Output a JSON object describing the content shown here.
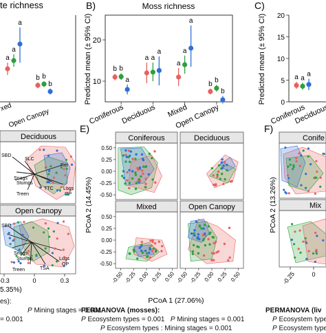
{
  "chart_data": [
    {
      "type": "scatter",
      "panel": "A",
      "title_fragment": "te richness",
      "categories": [
        "xed",
        "Open Canopy"
      ],
      "colors": [
        "#e8605f",
        "#2f9e3c",
        "#2f6fd6"
      ],
      "points": [
        {
          "cat": "xed",
          "idx": 0,
          "mean": 13.0,
          "lo": 11.5,
          "hi": 14.5,
          "label": "a"
        },
        {
          "cat": "xed",
          "idx": 1,
          "mean": 15.0,
          "lo": 13.5,
          "hi": 16.5,
          "label": "a"
        },
        {
          "cat": "xed",
          "idx": 2,
          "mean": 19.0,
          "lo": 14.5,
          "hi": 23.0,
          "label": "a"
        },
        {
          "cat": "Open Canopy",
          "idx": 0,
          "mean": 9.0,
          "lo": 8.3,
          "hi": 9.7,
          "label": "b"
        },
        {
          "cat": "Open Canopy",
          "idx": 1,
          "mean": 9.3,
          "lo": 8.6,
          "hi": 10.0,
          "label": "b"
        },
        {
          "cat": "Open Canopy",
          "idx": 2,
          "mean": 7.5,
          "lo": 6.8,
          "hi": 8.2,
          "label": "b"
        }
      ]
    },
    {
      "type": "scatter",
      "panel": "B",
      "title": "Moss richness",
      "ylabel": "Predicted mean (± 95% CI)",
      "ylim": [
        5,
        26
      ],
      "yticks": [
        10,
        20
      ],
      "categories": [
        "Coniferous",
        "Deciduous",
        "Mixed",
        "Open Canopy"
      ],
      "colors": [
        "#e8605f",
        "#2f9e3c",
        "#2f6fd6"
      ],
      "points": [
        {
          "cat": "Coniferous",
          "idx": 0,
          "mean": 11.0,
          "lo": 10.2,
          "hi": 11.8,
          "label": "b"
        },
        {
          "cat": "Coniferous",
          "idx": 1,
          "mean": 11.1,
          "lo": 10.3,
          "hi": 11.9,
          "label": "b"
        },
        {
          "cat": "Coniferous",
          "idx": 2,
          "mean": 8.0,
          "lo": 6.8,
          "hi": 9.2,
          "label": "a"
        },
        {
          "cat": "Deciduous",
          "idx": 0,
          "mean": 12.0,
          "lo": 9.5,
          "hi": 14.5,
          "label": "a"
        },
        {
          "cat": "Deciduous",
          "idx": 1,
          "mean": 12.2,
          "lo": 10.0,
          "hi": 14.5,
          "label": "a"
        },
        {
          "cat": "Deciduous",
          "idx": 2,
          "mean": 12.6,
          "lo": 9.0,
          "hi": 16.0,
          "label": "a"
        },
        {
          "cat": "Mixed",
          "idx": 0,
          "mean": 11.0,
          "lo": 8.8,
          "hi": 13.2,
          "label": "a"
        },
        {
          "cat": "Mixed",
          "idx": 1,
          "mean": 14.0,
          "lo": 11.8,
          "hi": 16.2,
          "label": "a"
        },
        {
          "cat": "Mixed",
          "idx": 2,
          "mean": 18.0,
          "lo": 13.5,
          "hi": 23.5,
          "label": "a"
        },
        {
          "cat": "Open Canopy",
          "idx": 0,
          "mean": 7.5,
          "lo": 6.8,
          "hi": 8.2,
          "label": "b"
        },
        {
          "cat": "Open Canopy",
          "idx": 1,
          "mean": 8.3,
          "lo": 7.5,
          "hi": 9.1,
          "label": "b"
        },
        {
          "cat": "Open Canopy",
          "idx": 2,
          "mean": 5.5,
          "lo": 4.6,
          "hi": 6.4,
          "label": "b"
        }
      ]
    },
    {
      "type": "scatter",
      "panel": "C",
      "ylabel": "Predicted mean (± 95% CI)",
      "ylim": [
        0,
        20
      ],
      "yticks": [
        0,
        5,
        10,
        15,
        20
      ],
      "categories": [
        "Coniferous",
        "Deciduous"
      ],
      "colors": [
        "#e8605f",
        "#2f9e3c",
        "#2f6fd6"
      ],
      "points": [
        {
          "cat": "Coniferous",
          "idx": 0,
          "mean": 3.8,
          "lo": 3.0,
          "hi": 4.6,
          "label": "a"
        },
        {
          "cat": "Coniferous",
          "idx": 1,
          "mean": 3.6,
          "lo": 2.8,
          "hi": 4.4,
          "label": "a"
        },
        {
          "cat": "Coniferous",
          "idx": 2,
          "mean": 4.0,
          "lo": 2.7,
          "hi": 5.3,
          "label": "a"
        }
      ]
    },
    {
      "type": "scatter",
      "panel": "D",
      "facets": [
        "Deciduous",
        "Open Canopy"
      ],
      "arrow_labels": [
        "SLC",
        "SBD",
        "Snags",
        "Stumps",
        "TSA",
        "Treen",
        "TTC",
        "Logs",
        "OP",
        "Ret"
      ],
      "xticks": [
        "0",
        "0.3"
      ],
      "xlabel_fragment": "5.35%)"
    },
    {
      "type": "scatter",
      "panel": "E",
      "xlabel": "PCoA 1 (27.06%)",
      "ylabel": "PCoA 2 (14.45%)",
      "xlim": [
        -0.6,
        0.6
      ],
      "ylim": [
        -0.6,
        0.6
      ],
      "xticks": [
        -0.5,
        -0.25,
        0.0,
        0.25,
        0.5
      ],
      "yticks": [
        -0.5,
        -0.25,
        0.0,
        0.25,
        0.5
      ],
      "facets": [
        "Coniferous",
        "Deciduous",
        "Mixed",
        "Open Canopy"
      ],
      "series": [
        {
          "name": "Coniferous",
          "color": "#e8605f"
        },
        {
          "name": "Deciduous",
          "color": "#2f9e3c"
        },
        {
          "name": "Mixed",
          "color": "#2f6fd6"
        }
      ]
    },
    {
      "type": "scatter",
      "panel": "F",
      "ylabel": "PCoA 2 (13.26%)",
      "facets": [
        "Conife",
        "Mix"
      ],
      "xticks": [
        -0.25,
        0
      ]
    }
  ],
  "figure": {
    "panel_labels": {
      "b": "B)",
      "c": "C)",
      "e": "E)",
      "f": "F)"
    },
    "axis_text": {
      "a_tick_lo": "-0.3",
      "a_tick_mid": "0",
      "a_tick_hi": "0.3"
    }
  },
  "permanova": {
    "left": {
      "heading": "es):",
      "line1_p": "P",
      "line1": "Mining stages = 0.001",
      "line2": "= 0.001"
    },
    "middle": {
      "heading": "PERMANOVA",
      "heading_rest": "(mosses):",
      "line1a_p": "P",
      "line1a": "Ecosystem types = 0.001",
      "line1b_p": "P",
      "line1b": "Mining stages = 0.001",
      "line2_p": "P",
      "line2": "Ecosystem types : Mining stages = 0.001"
    },
    "right": {
      "heading": "PERMANOVA",
      "heading_rest": "(liv",
      "line1_p": "P",
      "line1": "Ecosystem type",
      "line2_p": "P",
      "line2": "Ecosystem types"
    }
  }
}
